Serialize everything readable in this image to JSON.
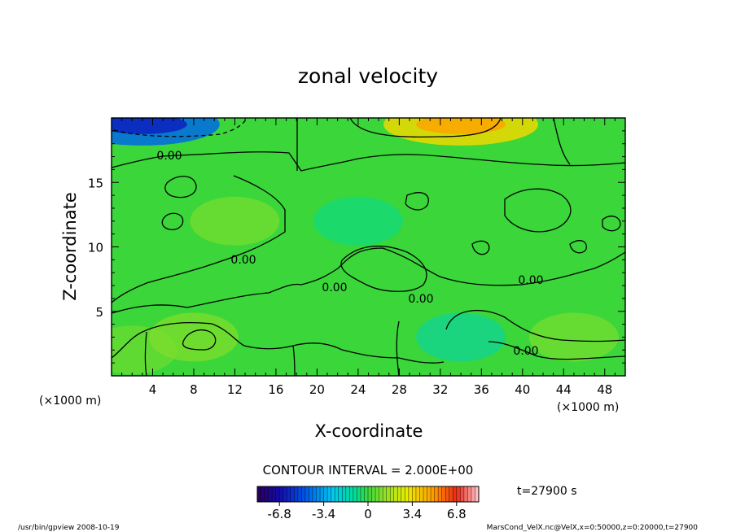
{
  "chart_data": {
    "type": "heatmap",
    "title": "zonal velocity",
    "xlabel": "X-coordinate",
    "ylabel": "Z-coordinate",
    "x_unit_left": "(×1000 m)",
    "x_unit_right": "(×1000 m)",
    "xlim": [
      0,
      50
    ],
    "ylim": [
      0,
      20
    ],
    "x_ticks": [
      4,
      8,
      12,
      16,
      20,
      24,
      28,
      32,
      36,
      40,
      44,
      48
    ],
    "y_ticks": [
      5,
      10,
      15
    ],
    "contour_labels": [
      "0.00",
      "0.00",
      "0.00",
      "0.00",
      "0.00",
      "0.00"
    ],
    "contour_interval": "CONTOUR INTERVAL = 2.000E+00",
    "time_label": "t=27900 s",
    "colorbar": {
      "min": -8.5,
      "max": 8.5,
      "ticks": [
        "-6.8",
        "-3.4",
        "0",
        "3.4",
        "6.8"
      ],
      "tick_values": [
        -6.8,
        -3.4,
        0,
        3.4,
        6.8
      ]
    },
    "features": [
      {
        "x": 3,
        "z": 19.5,
        "value": -4.5
      },
      {
        "x": 34,
        "z": 19.5,
        "value": 3.5
      },
      {
        "x": 12,
        "z": 12,
        "value": 1.2
      },
      {
        "x": 24,
        "z": 12,
        "value": -1.0
      },
      {
        "x": 8,
        "z": 3,
        "value": 1.4
      },
      {
        "x": 34,
        "z": 3,
        "value": -1.6
      },
      {
        "x": 2,
        "z": 2,
        "value": 1.0
      },
      {
        "x": 45,
        "z": 3,
        "value": 1.2
      }
    ]
  },
  "footer": {
    "left": "/usr/bin/gpview   2008-10-19",
    "right": "MarsCond_VelX.nc@VelX,x=0:50000,z=0:20000,t=27900"
  }
}
